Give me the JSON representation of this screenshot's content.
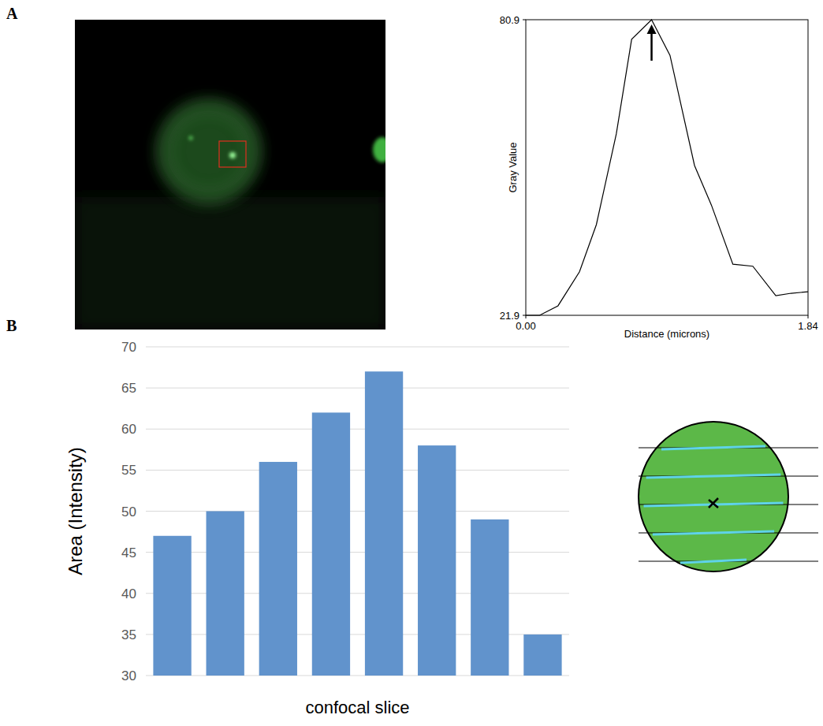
{
  "panel_letters": [
    "A",
    "B"
  ],
  "chart_data": [
    {
      "type": "line",
      "x_label": "Distance (microns)",
      "y_label": "Gray Value",
      "x": [
        0,
        0.09,
        0.21,
        0.35,
        0.46,
        0.59,
        0.69,
        0.82,
        0.94,
        1.1,
        1.21,
        1.35,
        1.48,
        1.63,
        1.73,
        1.84
      ],
      "values": [
        21.9,
        21.9,
        23.8,
        30.6,
        40.0,
        58.1,
        77.0,
        80.9,
        73.8,
        51.8,
        43.9,
        32.1,
        31.7,
        25.8,
        26.3,
        26.6
      ],
      "color": "#000000",
      "xlim": [
        0,
        1.84
      ],
      "xticks": [
        {
          "value": 0,
          "label": "0.00"
        },
        1.84
      ],
      "ylim": [
        21.9,
        80.9
      ],
      "yticks": [
        21.9,
        80.9
      ],
      "grid": false
    },
    {
      "type": "bar",
      "x_label": "confocal slice",
      "y_label": "Area (Intensity)",
      "categories": [
        null,
        null,
        null,
        null,
        null,
        null,
        null,
        null
      ],
      "values": [
        47,
        50,
        56,
        62,
        67,
        58,
        49,
        35
      ],
      "color": "#6193cc",
      "ylim": [
        30,
        70
      ],
      "yticks": [
        30,
        35,
        40,
        45,
        50,
        55,
        60,
        65,
        70
      ],
      "grid": true,
      "tick_labels": "y"
    }
  ]
}
